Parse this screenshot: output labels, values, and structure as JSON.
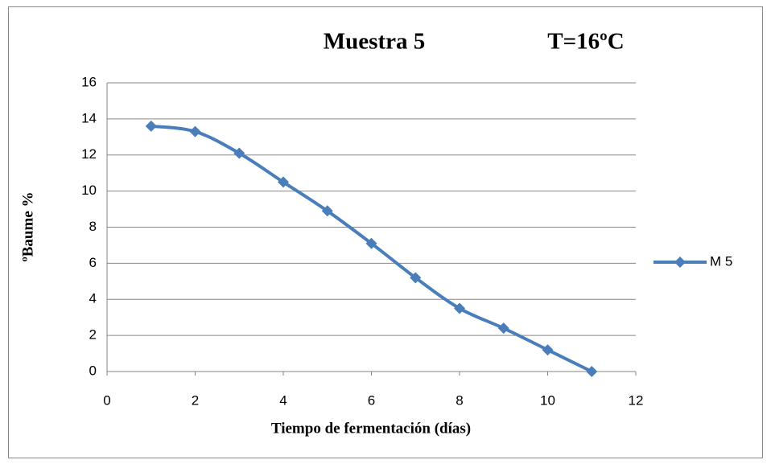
{
  "chart_data": {
    "type": "line",
    "title": "Muestra 5",
    "subtitle": "T=16ºC",
    "x_label": "Tiempo de fermentación (días)",
    "y_label": "ºBaume %",
    "x": [
      1,
      2,
      3,
      4,
      5,
      6,
      7,
      8,
      9,
      10,
      11
    ],
    "series": [
      {
        "name": "M 5",
        "color": "#4a7ebb",
        "values": [
          13.6,
          13.3,
          12.1,
          10.5,
          8.9,
          7.1,
          5.2,
          3.5,
          2.4,
          1.2,
          0
        ]
      }
    ],
    "xlim": [
      0,
      12
    ],
    "xticks": [
      0,
      2,
      4,
      6,
      8,
      10,
      12
    ],
    "ylim": [
      0,
      16
    ],
    "yticks": [
      0,
      2,
      4,
      6,
      8,
      10,
      12,
      14,
      16
    ],
    "grid": true,
    "legend": "right",
    "smooth": true
  }
}
